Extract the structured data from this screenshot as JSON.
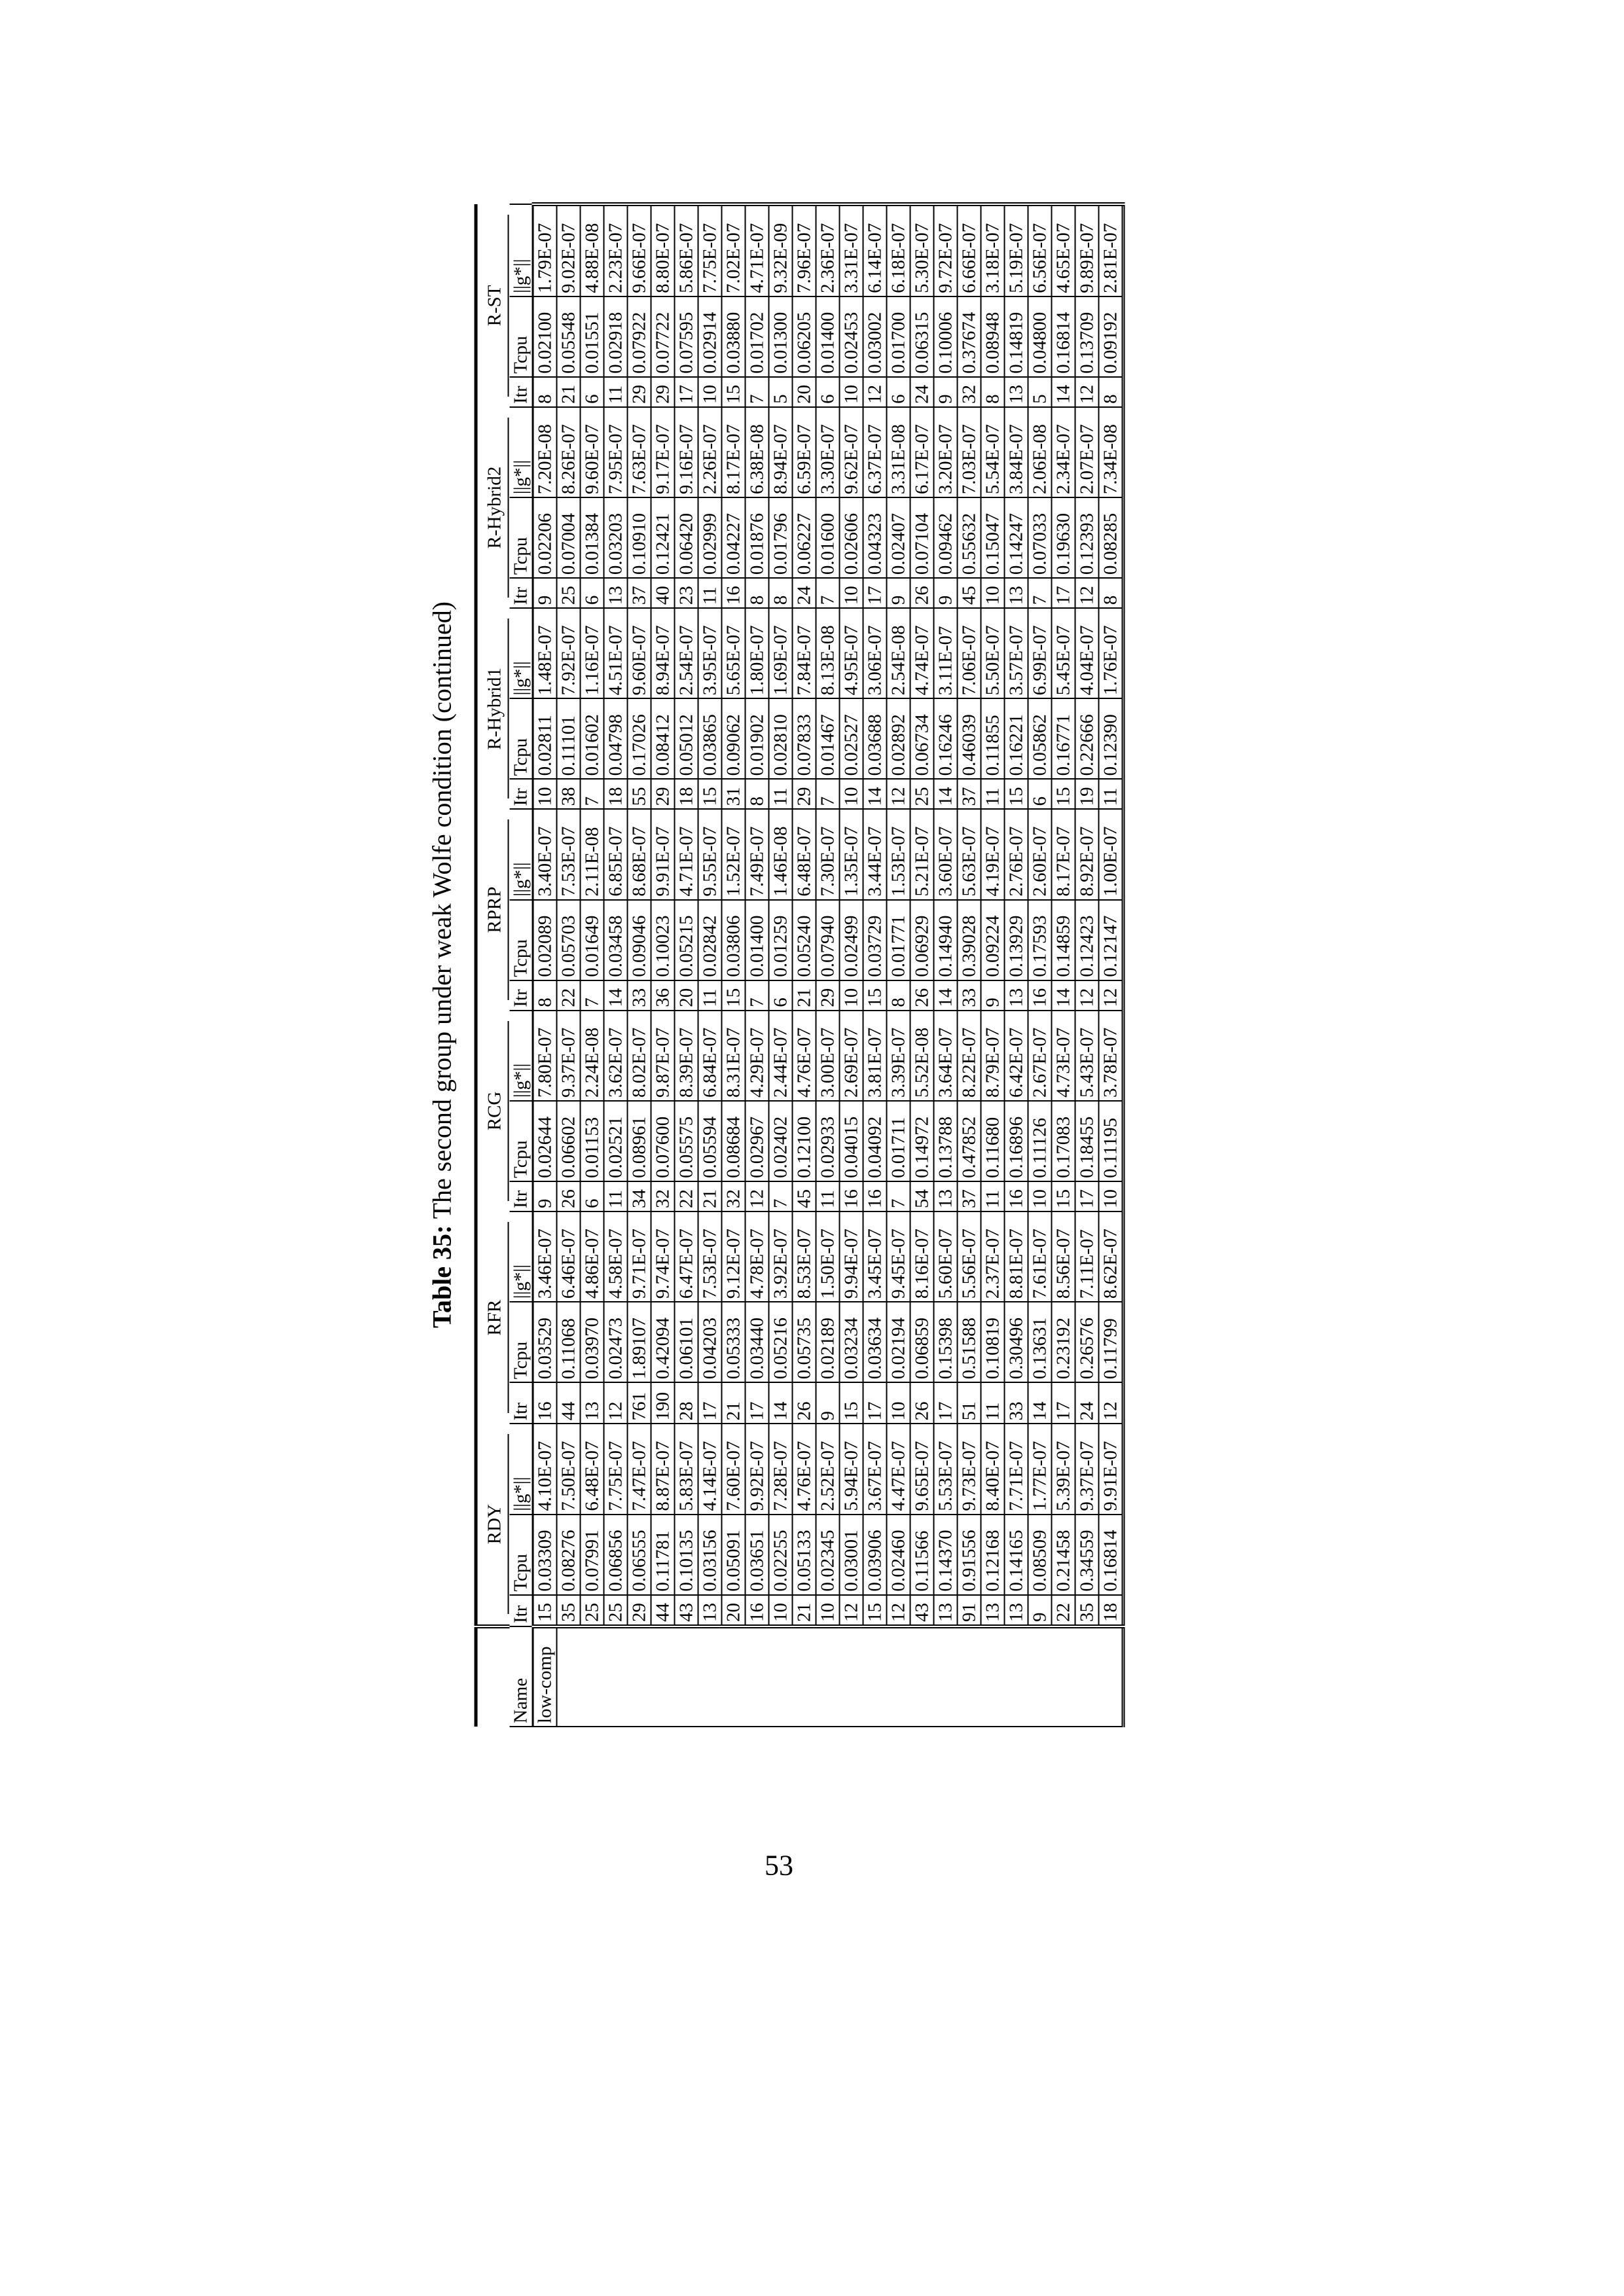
{
  "caption": {
    "label": "Table 35:",
    "text": "The second group under weak Wolfe condition (continued)"
  },
  "page_number": "53",
  "header": {
    "name": "Name",
    "methods": [
      "RDY",
      "RFR",
      "RCG",
      "RPRP",
      "R-Hybrid1",
      "R-Hybrid2",
      "R-ST"
    ],
    "subcolumns": [
      "Itr",
      "Tcpu",
      "||g*||"
    ]
  },
  "rows": [
    {
      "name": "low-comp",
      "cells": [
        "15",
        "0.03309",
        "4.10E-07",
        "16",
        "0.03529",
        "3.46E-07",
        "9",
        "0.02644",
        "7.80E-07",
        "8",
        "0.02089",
        "3.40E-07",
        "10",
        "0.02811",
        "1.48E-07",
        "9",
        "0.02206",
        "7.20E-08",
        "8",
        "0.02100",
        "1.79E-07"
      ]
    },
    {
      "name": "",
      "cells": [
        "35",
        "0.08276",
        "7.50E-07",
        "44",
        "0.11068",
        "6.46E-07",
        "26",
        "0.06602",
        "9.37E-07",
        "22",
        "0.05703",
        "7.53E-07",
        "38",
        "0.11101",
        "7.92E-07",
        "25",
        "0.07004",
        "8.26E-07",
        "21",
        "0.05548",
        "9.02E-07"
      ]
    },
    {
      "name": "",
      "cells": [
        "25",
        "0.07991",
        "6.48E-07",
        "13",
        "0.03970",
        "4.86E-07",
        "6",
        "0.01153",
        "2.24E-08",
        "7",
        "0.01649",
        "2.11E-08",
        "7",
        "0.01602",
        "1.16E-07",
        "6",
        "0.01384",
        "9.60E-07",
        "6",
        "0.01551",
        "4.88E-08"
      ]
    },
    {
      "name": "",
      "cells": [
        "25",
        "0.06856",
        "7.75E-07",
        "12",
        "0.02473",
        "4.58E-07",
        "11",
        "0.02521",
        "3.62E-07",
        "14",
        "0.03458",
        "6.85E-07",
        "18",
        "0.04798",
        "4.51E-07",
        "13",
        "0.03203",
        "7.95E-07",
        "11",
        "0.02918",
        "2.23E-07"
      ]
    },
    {
      "name": "",
      "cells": [
        "29",
        "0.06555",
        "7.47E-07",
        "761",
        "1.89107",
        "9.71E-07",
        "34",
        "0.08961",
        "8.02E-07",
        "33",
        "0.09046",
        "8.68E-07",
        "55",
        "0.17026",
        "9.60E-07",
        "37",
        "0.10910",
        "7.63E-07",
        "29",
        "0.07922",
        "9.66E-07"
      ]
    },
    {
      "name": "",
      "cells": [
        "44",
        "0.11781",
        "8.87E-07",
        "190",
        "0.42094",
        "9.74E-07",
        "32",
        "0.07600",
        "9.87E-07",
        "36",
        "0.10023",
        "9.91E-07",
        "29",
        "0.08412",
        "8.94E-07",
        "40",
        "0.12421",
        "9.17E-07",
        "29",
        "0.07722",
        "8.80E-07"
      ]
    },
    {
      "name": "",
      "cells": [
        "43",
        "0.10135",
        "5.83E-07",
        "28",
        "0.06101",
        "6.47E-07",
        "22",
        "0.05575",
        "8.39E-07",
        "20",
        "0.05215",
        "4.71E-07",
        "18",
        "0.05012",
        "2.54E-07",
        "23",
        "0.06420",
        "9.16E-07",
        "17",
        "0.07595",
        "5.86E-07"
      ]
    },
    {
      "name": "",
      "cells": [
        "13",
        "0.03156",
        "4.14E-07",
        "17",
        "0.04203",
        "7.53E-07",
        "21",
        "0.05594",
        "6.84E-07",
        "11",
        "0.02842",
        "9.55E-07",
        "15",
        "0.03865",
        "3.95E-07",
        "11",
        "0.02999",
        "2.26E-07",
        "10",
        "0.02914",
        "7.75E-07"
      ]
    },
    {
      "name": "",
      "cells": [
        "20",
        "0.05091",
        "7.60E-07",
        "21",
        "0.05333",
        "9.12E-07",
        "32",
        "0.08684",
        "8.31E-07",
        "15",
        "0.03806",
        "1.52E-07",
        "31",
        "0.09062",
        "5.65E-07",
        "16",
        "0.04227",
        "8.17E-07",
        "15",
        "0.03880",
        "7.02E-07"
      ]
    },
    {
      "name": "",
      "cells": [
        "16",
        "0.03651",
        "9.92E-07",
        "17",
        "0.03440",
        "4.78E-07",
        "12",
        "0.02967",
        "4.29E-07",
        "7",
        "0.01400",
        "7.49E-07",
        "8",
        "0.01902",
        "1.80E-07",
        "8",
        "0.01876",
        "6.38E-08",
        "7",
        "0.01702",
        "4.71E-07"
      ]
    },
    {
      "name": "",
      "cells": [
        "10",
        "0.02255",
        "7.28E-07",
        "14",
        "0.05216",
        "3.92E-07",
        "7",
        "0.02402",
        "2.44E-07",
        "6",
        "0.01259",
        "1.46E-08",
        "11",
        "0.02810",
        "1.69E-07",
        "8",
        "0.01796",
        "8.94E-07",
        "5",
        "0.01300",
        "9.32E-09"
      ]
    },
    {
      "name": "",
      "cells": [
        "21",
        "0.05133",
        "4.76E-07",
        "26",
        "0.05735",
        "8.53E-07",
        "45",
        "0.12100",
        "4.76E-07",
        "21",
        "0.05240",
        "6.48E-07",
        "29",
        "0.07833",
        "7.84E-07",
        "24",
        "0.06227",
        "6.59E-07",
        "20",
        "0.06205",
        "7.96E-07"
      ]
    },
    {
      "name": "",
      "cells": [
        "10",
        "0.02345",
        "2.52E-07",
        "9",
        "0.02189",
        "1.50E-07",
        "11",
        "0.02933",
        "3.00E-07",
        "29",
        "0.07940",
        "7.30E-07",
        "7",
        "0.01467",
        "8.13E-08",
        "7",
        "0.01600",
        "3.30E-07",
        "6",
        "0.01400",
        "2.36E-07"
      ]
    },
    {
      "name": "",
      "cells": [
        "12",
        "0.03001",
        "5.94E-07",
        "15",
        "0.03234",
        "9.94E-07",
        "16",
        "0.04015",
        "2.69E-07",
        "10",
        "0.02499",
        "1.35E-07",
        "10",
        "0.02527",
        "4.95E-07",
        "10",
        "0.02606",
        "9.62E-07",
        "10",
        "0.02453",
        "3.31E-07"
      ]
    },
    {
      "name": "",
      "cells": [
        "15",
        "0.03906",
        "3.67E-07",
        "17",
        "0.03634",
        "3.45E-07",
        "16",
        "0.04092",
        "3.81E-07",
        "15",
        "0.03729",
        "3.44E-07",
        "14",
        "0.03688",
        "3.06E-07",
        "17",
        "0.04323",
        "6.37E-07",
        "12",
        "0.03002",
        "6.14E-07"
      ]
    },
    {
      "name": "",
      "cells": [
        "12",
        "0.02460",
        "4.47E-07",
        "10",
        "0.02194",
        "9.45E-07",
        "7",
        "0.01711",
        "3.39E-07",
        "8",
        "0.01771",
        "1.53E-07",
        "12",
        "0.02892",
        "2.54E-08",
        "9",
        "0.02407",
        "3.31E-08",
        "6",
        "0.01700",
        "6.18E-07"
      ]
    },
    {
      "name": "",
      "cells": [
        "43",
        "0.11566",
        "9.65E-07",
        "26",
        "0.06859",
        "8.16E-07",
        "54",
        "0.14972",
        "5.52E-08",
        "26",
        "0.06929",
        "5.21E-07",
        "25",
        "0.06734",
        "4.74E-07",
        "26",
        "0.07104",
        "6.17E-07",
        "24",
        "0.06315",
        "5.30E-07"
      ]
    },
    {
      "name": "",
      "cells": [
        "13",
        "0.14370",
        "5.53E-07",
        "17",
        "0.15398",
        "5.60E-07",
        "13",
        "0.13788",
        "3.64E-07",
        "14",
        "0.14940",
        "3.60E-07",
        "14",
        "0.16246",
        "3.11E-07",
        "9",
        "0.09462",
        "3.20E-07",
        "9",
        "0.10006",
        "9.72E-07"
      ]
    },
    {
      "name": "",
      "cells": [
        "91",
        "0.91556",
        "9.73E-07",
        "51",
        "0.51588",
        "5.56E-07",
        "37",
        "0.47852",
        "8.22E-07",
        "33",
        "0.39028",
        "5.63E-07",
        "37",
        "0.46039",
        "7.06E-07",
        "45",
        "0.55632",
        "7.03E-07",
        "32",
        "0.37674",
        "6.66E-07"
      ]
    },
    {
      "name": "",
      "cells": [
        "13",
        "0.12168",
        "8.40E-07",
        "11",
        "0.10819",
        "2.37E-07",
        "11",
        "0.11680",
        "8.79E-07",
        "9",
        "0.09224",
        "4.19E-07",
        "11",
        "0.11855",
        "5.50E-07",
        "10",
        "0.15047",
        "5.54E-07",
        "8",
        "0.08948",
        "3.18E-07"
      ]
    },
    {
      "name": "",
      "cells": [
        "13",
        "0.14165",
        "7.71E-07",
        "33",
        "0.30496",
        "8.81E-07",
        "16",
        "0.16896",
        "6.42E-07",
        "13",
        "0.13929",
        "2.76E-07",
        "15",
        "0.16221",
        "3.57E-07",
        "13",
        "0.14247",
        "3.84E-07",
        "13",
        "0.14819",
        "5.19E-07"
      ]
    },
    {
      "name": "",
      "cells": [
        "9",
        "0.08509",
        "1.77E-07",
        "14",
        "0.13631",
        "7.61E-07",
        "10",
        "0.11126",
        "2.67E-07",
        "16",
        "0.17593",
        "2.60E-07",
        "6",
        "0.05862",
        "6.99E-07",
        "7",
        "0.07033",
        "2.06E-08",
        "5",
        "0.04800",
        "6.56E-07"
      ]
    },
    {
      "name": "",
      "cells": [
        "22",
        "0.21458",
        "5.39E-07",
        "17",
        "0.23192",
        "8.56E-07",
        "15",
        "0.17083",
        "4.73E-07",
        "14",
        "0.14859",
        "8.17E-07",
        "15",
        "0.16771",
        "5.45E-07",
        "17",
        "0.19630",
        "2.34E-07",
        "14",
        "0.16814",
        "4.65E-07"
      ]
    },
    {
      "name": "",
      "cells": [
        "35",
        "0.34559",
        "9.37E-07",
        "24",
        "0.26576",
        "7.11E-07",
        "17",
        "0.18455",
        "5.43E-07",
        "12",
        "0.12423",
        "8.92E-07",
        "19",
        "0.22666",
        "4.04E-07",
        "12",
        "0.12393",
        "2.07E-07",
        "12",
        "0.13709",
        "9.89E-07"
      ]
    },
    {
      "name": "",
      "cells": [
        "18",
        "0.16814",
        "9.91E-07",
        "12",
        "0.11799",
        "8.62E-07",
        "10",
        "0.11195",
        "3.78E-07",
        "12",
        "0.12147",
        "1.00E-07",
        "11",
        "0.12390",
        "1.76E-07",
        "8",
        "0.08285",
        "7.34E-08",
        "8",
        "0.09192",
        "2.81E-07"
      ]
    }
  ]
}
